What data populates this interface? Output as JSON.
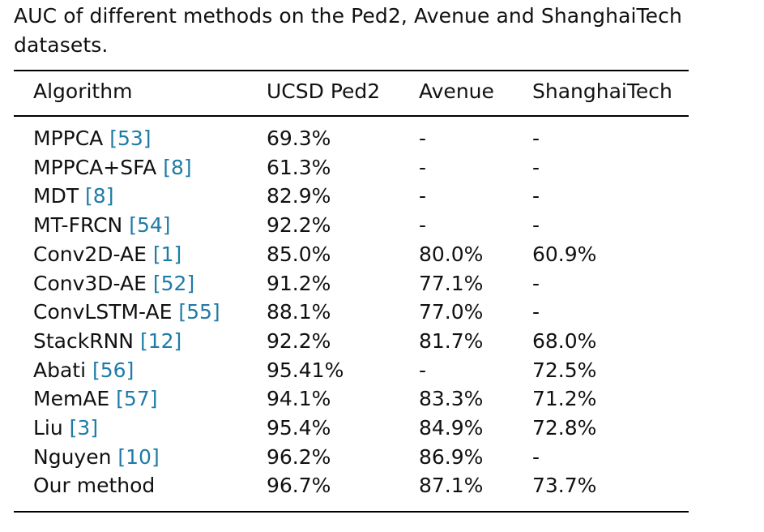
{
  "caption": "AUC of different methods on the Ped2, Avenue and ShanghaiTech datasets.",
  "headers": [
    "Algorithm",
    "UCSD Ped2",
    "Avenue",
    "ShanghaiTech"
  ],
  "rows": [
    {
      "method": "MPPCA",
      "ref": "[53]",
      "ped2": "69.3%",
      "avenue": "-",
      "shanghaitech": "-"
    },
    {
      "method": "MPPCA+SFA",
      "ref": "[8]",
      "ped2": "61.3%",
      "avenue": "-",
      "shanghaitech": "-"
    },
    {
      "method": "MDT",
      "ref": "[8]",
      "ped2": "82.9%",
      "avenue": "-",
      "shanghaitech": "-"
    },
    {
      "method": "MT-FRCN",
      "ref": "[54]",
      "ped2": "92.2%",
      "avenue": "-",
      "shanghaitech": "-"
    },
    {
      "method": "Conv2D-AE",
      "ref": "[1]",
      "ped2": "85.0%",
      "avenue": "80.0%",
      "shanghaitech": "60.9%"
    },
    {
      "method": "Conv3D-AE",
      "ref": "[52]",
      "ped2": "91.2%",
      "avenue": "77.1%",
      "shanghaitech": "-"
    },
    {
      "method": "ConvLSTM-AE",
      "ref": "[55]",
      "ped2": "88.1%",
      "avenue": "77.0%",
      "shanghaitech": "-"
    },
    {
      "method": "StackRNN",
      "ref": "[12]",
      "ped2": "92.2%",
      "avenue": "81.7%",
      "shanghaitech": "68.0%"
    },
    {
      "method": "Abati",
      "ref": "[56]",
      "ped2": "95.41%",
      "avenue": "-",
      "shanghaitech": "72.5%"
    },
    {
      "method": "MemAE",
      "ref": "[57]",
      "ped2": "94.1%",
      "avenue": "83.3%",
      "shanghaitech": "71.2%"
    },
    {
      "method": "Liu",
      "ref": "[3]",
      "ped2": "95.4%",
      "avenue": "84.9%",
      "shanghaitech": "72.8%"
    },
    {
      "method": "Nguyen",
      "ref": "[10]",
      "ped2": "96.2%",
      "avenue": "86.9%",
      "shanghaitech": "-"
    },
    {
      "method": "Our method",
      "ref": "",
      "ped2": "96.7%",
      "avenue": "87.1%",
      "shanghaitech": "73.7%"
    }
  ],
  "colors": {
    "text": "#111111",
    "reference_link": "#1f7ba8",
    "rule": "#000000"
  }
}
